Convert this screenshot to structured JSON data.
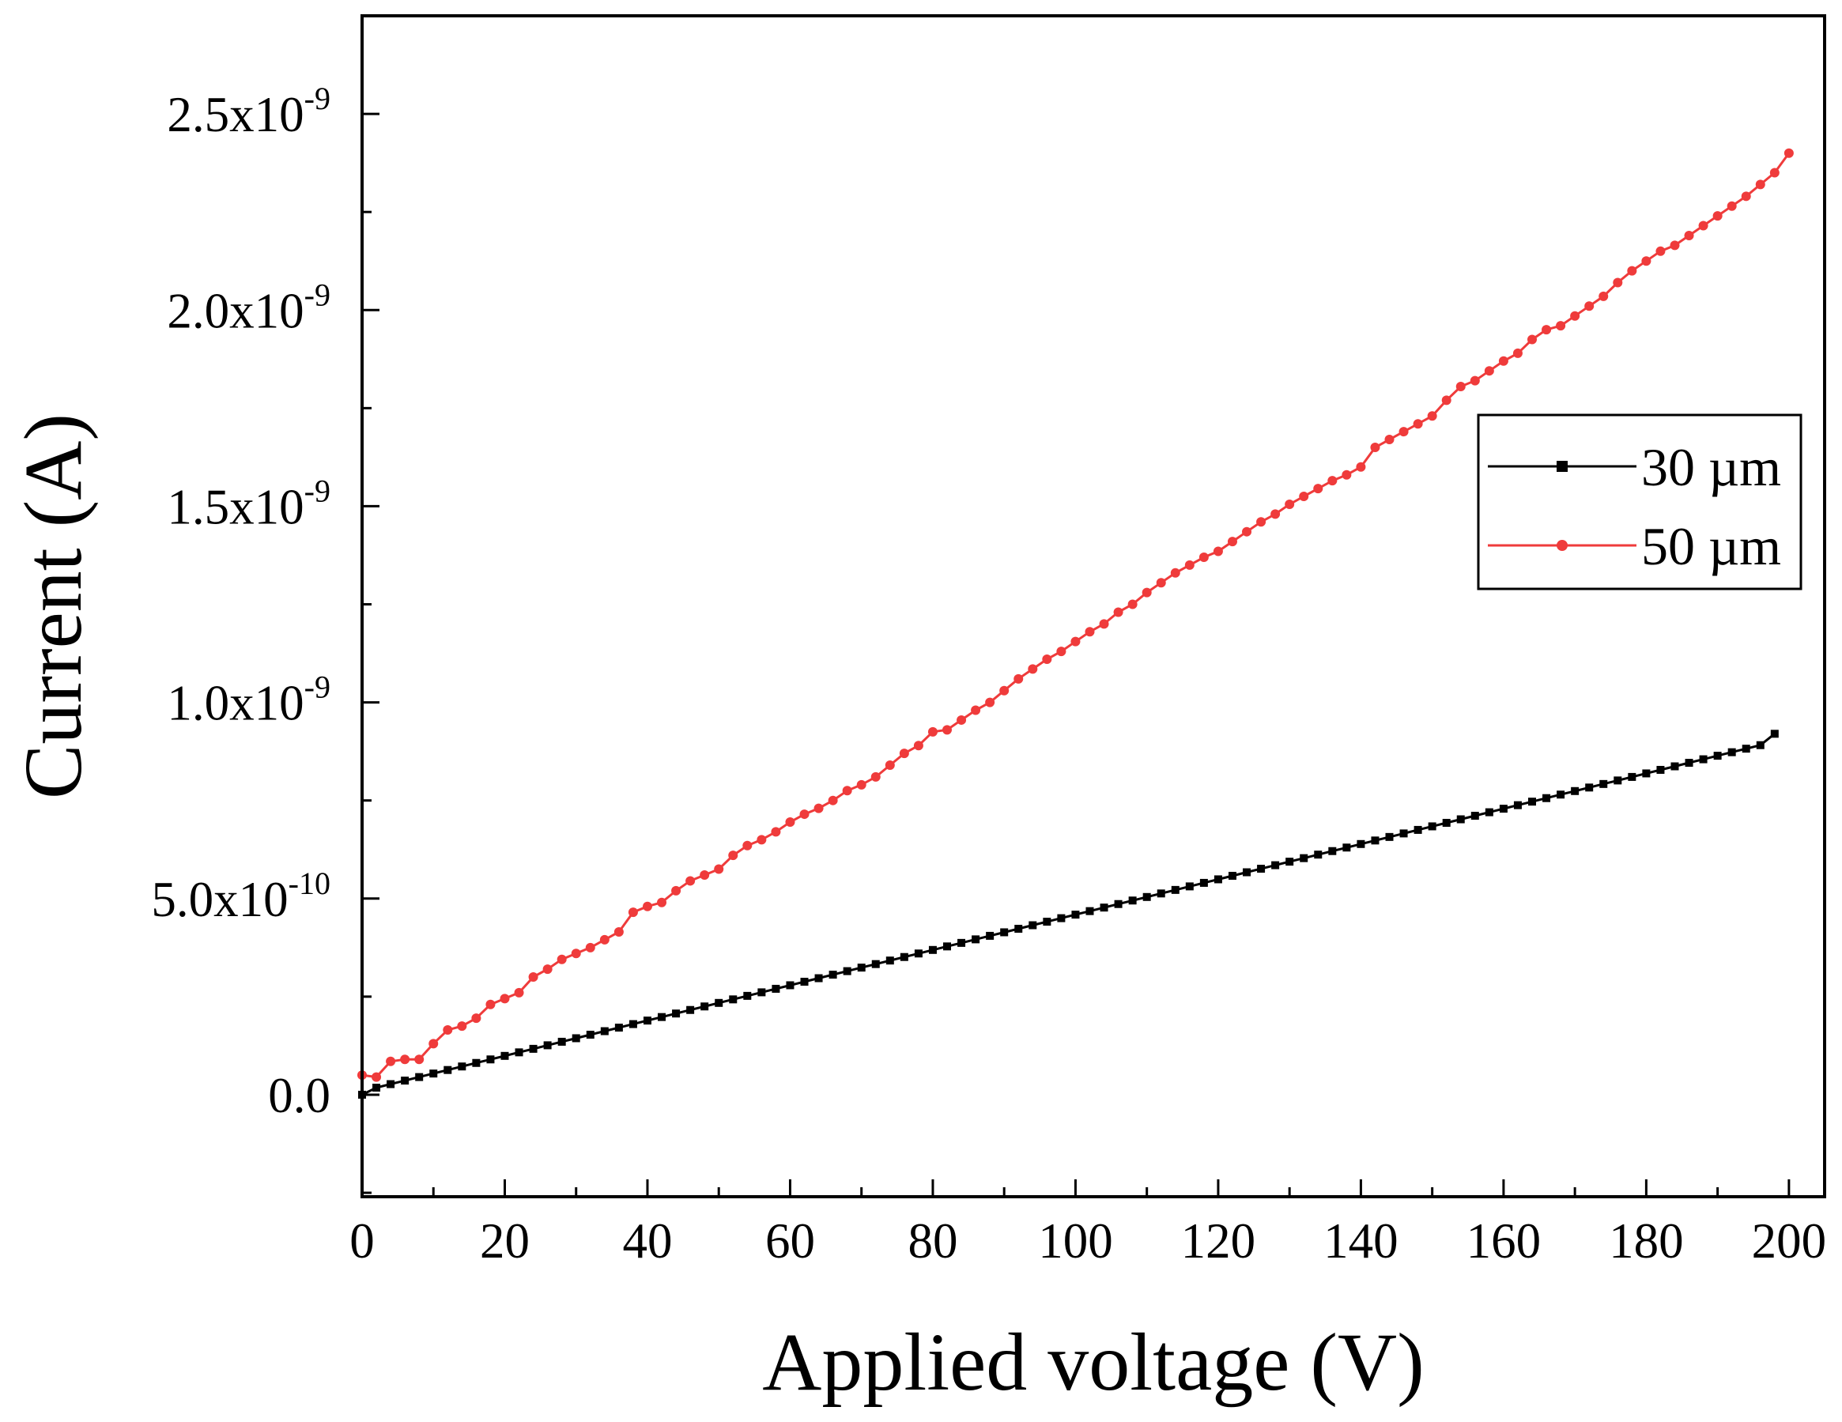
{
  "chart_data": {
    "type": "line",
    "title": "",
    "xlabel": "Applied voltage (V)",
    "ylabel": "Current (A)",
    "xlim": [
      0,
      205
    ],
    "ylim": [
      -2.6e-10,
      2.75e-09
    ],
    "x_ticks": [
      {
        "value": 0,
        "label": "0"
      },
      {
        "value": 20,
        "label": "20"
      },
      {
        "value": 40,
        "label": "40"
      },
      {
        "value": 60,
        "label": "60"
      },
      {
        "value": 80,
        "label": "80"
      },
      {
        "value": 100,
        "label": "100"
      },
      {
        "value": 120,
        "label": "120"
      },
      {
        "value": 140,
        "label": "140"
      },
      {
        "value": 160,
        "label": "160"
      },
      {
        "value": 180,
        "label": "180"
      },
      {
        "value": 200,
        "label": "200"
      }
    ],
    "y_ticks": [
      {
        "value": 0,
        "label": "0.0",
        "exp": ""
      },
      {
        "value": 5e-10,
        "label": "5.0x10",
        "exp": "-10"
      },
      {
        "value": 1e-09,
        "label": "1.0x10",
        "exp": "-9"
      },
      {
        "value": 1.5e-09,
        "label": "1.5x10",
        "exp": "-9"
      },
      {
        "value": 2e-09,
        "label": "2.0x10",
        "exp": "-9"
      },
      {
        "value": 2.5e-09,
        "label": "2.5x10",
        "exp": "-9"
      }
    ],
    "x_minor_step": 10,
    "y_minor_step": 2.5e-10,
    "legend_position": "center-right",
    "series": [
      {
        "name": "30 µm",
        "color": "#000000",
        "marker": "square",
        "x_start": 0,
        "x_end": 198,
        "x_step": 2,
        "y_values": [
          0.0,
          1.8e-11,
          2.7e-11,
          3.6e-11,
          4.5e-11,
          5.4e-11,
          6.3e-11,
          7.2e-11,
          8.1e-11,
          9e-11,
          9.9e-11,
          1.08e-10,
          1.17e-10,
          1.26e-10,
          1.35e-10,
          1.44e-10,
          1.53e-10,
          1.62e-10,
          1.71e-10,
          1.8e-10,
          1.89e-10,
          1.98e-10,
          2.07e-10,
          2.16e-10,
          2.25e-10,
          2.34e-10,
          2.43e-10,
          2.52e-10,
          2.61e-10,
          2.7e-10,
          2.79e-10,
          2.88e-10,
          2.97e-10,
          3.06e-10,
          3.15e-10,
          3.24e-10,
          3.33e-10,
          3.42e-10,
          3.51e-10,
          3.6e-10,
          3.69e-10,
          3.78e-10,
          3.87e-10,
          3.96e-10,
          4.05e-10,
          4.14e-10,
          4.23e-10,
          4.32e-10,
          4.41e-10,
          4.5e-10,
          4.59e-10,
          4.68e-10,
          4.77e-10,
          4.86e-10,
          4.95e-10,
          5.04e-10,
          5.13e-10,
          5.22e-10,
          5.31e-10,
          5.4e-10,
          5.49e-10,
          5.58e-10,
          5.67e-10,
          5.76e-10,
          5.85e-10,
          5.94e-10,
          6.03e-10,
          6.12e-10,
          6.21e-10,
          6.3e-10,
          6.39e-10,
          6.48e-10,
          6.57e-10,
          6.66e-10,
          6.75e-10,
          6.84e-10,
          6.93e-10,
          7.02e-10,
          7.11e-10,
          7.2e-10,
          7.29e-10,
          7.38e-10,
          7.47e-10,
          7.56e-10,
          7.65e-10,
          7.74e-10,
          7.83e-10,
          7.92e-10,
          8.01e-10,
          8.1e-10,
          8.19e-10,
          8.28e-10,
          8.37e-10,
          8.46e-10,
          8.55e-10,
          8.64e-10,
          8.73e-10,
          8.82e-10,
          8.91e-10,
          9.2e-10
        ]
      },
      {
        "name": "50 µm",
        "color": "#ef3b3b",
        "marker": "circle",
        "x_start": 0,
        "x_end": 200,
        "x_step": 2,
        "y_values": [
          5e-11,
          4.5e-11,
          8.5e-11,
          9e-11,
          9e-11,
          1.3e-10,
          1.65e-10,
          1.75e-10,
          1.95e-10,
          2.3e-10,
          2.45e-10,
          2.6e-10,
          3e-10,
          3.2e-10,
          3.45e-10,
          3.6e-10,
          3.75e-10,
          3.95e-10,
          4.15e-10,
          4.65e-10,
          4.8e-10,
          4.9e-10,
          5.2e-10,
          5.45e-10,
          5.6e-10,
          5.75e-10,
          6.1e-10,
          6.35e-10,
          6.5e-10,
          6.7e-10,
          6.95e-10,
          7.15e-10,
          7.3e-10,
          7.5e-10,
          7.75e-10,
          7.9e-10,
          8.1e-10,
          8.4e-10,
          8.7e-10,
          8.9e-10,
          9.25e-10,
          9.3e-10,
          9.55e-10,
          9.8e-10,
          1e-09,
          1.03e-09,
          1.06e-09,
          1.085e-09,
          1.11e-09,
          1.13e-09,
          1.155e-09,
          1.18e-09,
          1.2e-09,
          1.23e-09,
          1.25e-09,
          1.28e-09,
          1.305e-09,
          1.33e-09,
          1.35e-09,
          1.37e-09,
          1.385e-09,
          1.41e-09,
          1.435e-09,
          1.46e-09,
          1.48e-09,
          1.505e-09,
          1.525e-09,
          1.545e-09,
          1.565e-09,
          1.58e-09,
          1.6e-09,
          1.65e-09,
          1.67e-09,
          1.69e-09,
          1.71e-09,
          1.73e-09,
          1.77e-09,
          1.805e-09,
          1.82e-09,
          1.845e-09,
          1.87e-09,
          1.89e-09,
          1.925e-09,
          1.95e-09,
          1.96e-09,
          1.985e-09,
          2.01e-09,
          2.035e-09,
          2.07e-09,
          2.1e-09,
          2.125e-09,
          2.15e-09,
          2.165e-09,
          2.19e-09,
          2.215e-09,
          2.24e-09,
          2.265e-09,
          2.29e-09,
          2.32e-09,
          2.35e-09,
          2.4e-09
        ]
      }
    ]
  }
}
